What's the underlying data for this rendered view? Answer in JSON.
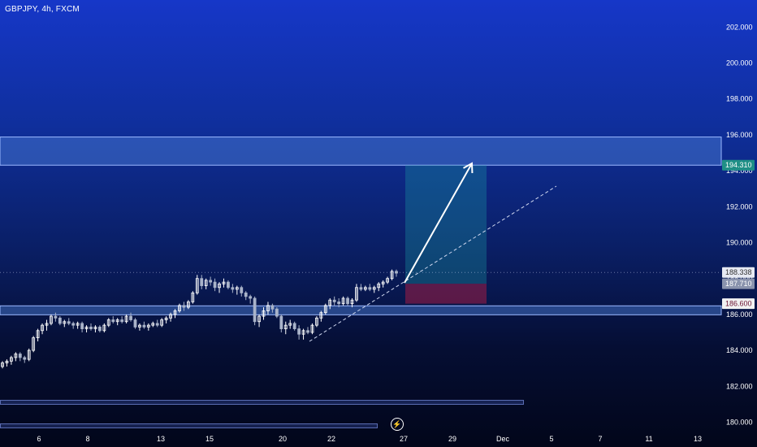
{
  "symbol_label": "GBPJPY, 4h, FXCM",
  "chart_data": {
    "type": "candlestick",
    "symbol": "GBPJPY",
    "timeframe": "4h",
    "source": "FXCM",
    "y_ticks": [
      "202.000",
      "200.000",
      "198.000",
      "196.000",
      "194.000",
      "192.000",
      "190.000",
      "188.000",
      "186.000",
      "184.000",
      "182.000",
      "180.000"
    ],
    "x_ticks": [
      "6",
      "8",
      "13",
      "15",
      "20",
      "22",
      "27",
      "29",
      "Dec",
      "5",
      "7",
      "11",
      "13"
    ],
    "price_labels": {
      "target": "194.310",
      "current": "188.338",
      "entry": "187.710",
      "stop": "186.600"
    },
    "zones": [
      {
        "name": "resistance-zone",
        "low": 194.31,
        "high": 195.88
      },
      {
        "name": "support-zone",
        "low": 185.98,
        "high": 186.48
      }
    ],
    "position": {
      "type": "long",
      "entry": 187.71,
      "target": 194.31,
      "stop": 186.6
    },
    "ohlc": [
      [
        183.1,
        183.4,
        183.0,
        183.3
      ],
      [
        183.3,
        183.5,
        183.1,
        183.4
      ],
      [
        183.4,
        183.7,
        183.2,
        183.6
      ],
      [
        183.6,
        183.9,
        183.4,
        183.8
      ],
      [
        183.8,
        183.9,
        183.4,
        183.6
      ],
      [
        183.6,
        183.7,
        183.3,
        183.5
      ],
      [
        183.5,
        184.1,
        183.4,
        184.0
      ],
      [
        184.0,
        184.8,
        183.9,
        184.7
      ],
      [
        184.7,
        185.2,
        184.5,
        185.1
      ],
      [
        185.1,
        185.5,
        184.9,
        185.4
      ],
      [
        185.4,
        185.7,
        185.1,
        185.5
      ],
      [
        185.5,
        186.0,
        185.4,
        185.9
      ],
      [
        185.9,
        186.1,
        185.6,
        185.8
      ],
      [
        185.8,
        185.9,
        185.4,
        185.5
      ],
      [
        185.5,
        185.7,
        185.3,
        185.6
      ],
      [
        185.6,
        185.8,
        185.4,
        185.5
      ],
      [
        185.5,
        185.6,
        185.2,
        185.4
      ],
      [
        185.4,
        185.6,
        185.2,
        185.5
      ],
      [
        185.5,
        185.6,
        185.0,
        185.2
      ],
      [
        185.2,
        185.4,
        185.0,
        185.3
      ],
      [
        185.3,
        185.5,
        185.1,
        185.2
      ],
      [
        185.2,
        185.4,
        185.0,
        185.3
      ],
      [
        185.3,
        185.4,
        185.0,
        185.1
      ],
      [
        185.1,
        185.5,
        185.0,
        185.4
      ],
      [
        185.4,
        185.8,
        185.3,
        185.7
      ],
      [
        185.7,
        185.9,
        185.5,
        185.6
      ],
      [
        185.6,
        185.8,
        185.4,
        185.7
      ],
      [
        185.7,
        185.9,
        185.5,
        185.6
      ],
      [
        185.6,
        186.0,
        185.5,
        185.9
      ],
      [
        185.9,
        186.1,
        185.6,
        185.7
      ],
      [
        185.7,
        185.8,
        185.2,
        185.3
      ],
      [
        185.3,
        185.5,
        185.1,
        185.4
      ],
      [
        185.4,
        185.6,
        185.2,
        185.3
      ],
      [
        185.3,
        185.5,
        185.1,
        185.4
      ],
      [
        185.4,
        185.6,
        185.3,
        185.5
      ],
      [
        185.5,
        185.7,
        185.3,
        185.4
      ],
      [
        185.4,
        185.8,
        185.3,
        185.7
      ],
      [
        185.7,
        185.9,
        185.5,
        185.8
      ],
      [
        185.8,
        186.1,
        185.6,
        186.0
      ],
      [
        186.0,
        186.3,
        185.8,
        186.2
      ],
      [
        186.2,
        186.6,
        186.1,
        186.5
      ],
      [
        186.5,
        186.7,
        186.2,
        186.4
      ],
      [
        186.4,
        186.8,
        186.3,
        186.7
      ],
      [
        186.7,
        187.3,
        186.6,
        187.2
      ],
      [
        187.2,
        188.2,
        187.1,
        188.0
      ],
      [
        188.0,
        188.2,
        187.4,
        187.6
      ],
      [
        187.6,
        188.0,
        187.4,
        187.9
      ],
      [
        187.9,
        188.1,
        187.6,
        187.8
      ],
      [
        187.8,
        188.0,
        187.3,
        187.5
      ],
      [
        187.5,
        187.8,
        187.2,
        187.7
      ],
      [
        187.7,
        188.0,
        187.5,
        187.8
      ],
      [
        187.8,
        187.9,
        187.4,
        187.5
      ],
      [
        187.5,
        187.7,
        187.2,
        187.4
      ],
      [
        187.4,
        187.6,
        187.1,
        187.5
      ],
      [
        187.5,
        187.6,
        187.0,
        187.2
      ],
      [
        187.2,
        187.3,
        186.8,
        187.0
      ],
      [
        187.0,
        187.1,
        186.6,
        186.9
      ],
      [
        186.9,
        187.0,
        185.4,
        185.6
      ],
      [
        185.6,
        186.0,
        185.3,
        185.9
      ],
      [
        185.9,
        186.4,
        185.7,
        186.2
      ],
      [
        186.2,
        186.7,
        186.0,
        186.5
      ],
      [
        186.5,
        186.6,
        186.1,
        186.3
      ],
      [
        186.3,
        186.4,
        185.8,
        185.9
      ],
      [
        185.9,
        186.0,
        185.0,
        185.2
      ],
      [
        185.2,
        185.6,
        184.9,
        185.4
      ],
      [
        185.4,
        185.7,
        185.2,
        185.5
      ],
      [
        185.5,
        185.6,
        185.1,
        185.2
      ],
      [
        185.2,
        185.4,
        184.6,
        184.9
      ],
      [
        184.9,
        185.2,
        184.6,
        185.1
      ],
      [
        185.1,
        185.3,
        184.9,
        185.0
      ],
      [
        185.0,
        185.5,
        184.9,
        185.4
      ],
      [
        185.4,
        185.9,
        185.3,
        185.8
      ],
      [
        185.8,
        186.2,
        185.6,
        186.1
      ],
      [
        186.1,
        186.6,
        186.0,
        186.5
      ],
      [
        186.5,
        186.9,
        186.3,
        186.8
      ],
      [
        186.8,
        187.0,
        186.5,
        186.7
      ],
      [
        186.7,
        186.9,
        186.4,
        186.6
      ],
      [
        186.6,
        187.0,
        186.5,
        186.9
      ],
      [
        186.9,
        187.0,
        186.5,
        186.6
      ],
      [
        186.6,
        186.9,
        186.4,
        186.8
      ],
      [
        186.8,
        187.7,
        186.7,
        187.5
      ],
      [
        187.5,
        187.7,
        187.3,
        187.4
      ],
      [
        187.4,
        187.6,
        187.3,
        187.5
      ],
      [
        187.5,
        187.7,
        187.3,
        187.4
      ],
      [
        187.4,
        187.6,
        187.2,
        187.5
      ],
      [
        187.5,
        187.8,
        187.3,
        187.7
      ],
      [
        187.7,
        187.9,
        187.5,
        187.8
      ],
      [
        187.8,
        188.1,
        187.7,
        188.0
      ],
      [
        188.0,
        188.5,
        187.9,
        188.4
      ],
      [
        188.4,
        188.5,
        188.1,
        188.3
      ]
    ]
  }
}
